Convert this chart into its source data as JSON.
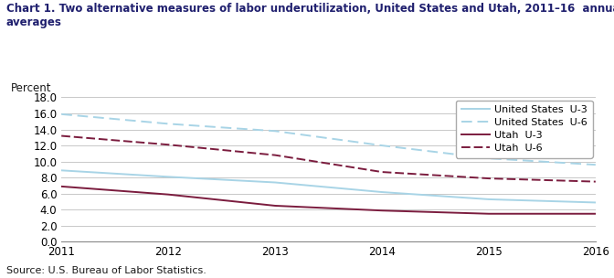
{
  "title": "Chart 1. Two alternative measures of labor underutilization, United States and Utah, 2011–16  annual\naverages",
  "ylabel": "Percent",
  "source": "Source: U.S. Bureau of Labor Statistics.",
  "years": [
    2011,
    2012,
    2013,
    2014,
    2015,
    2016
  ],
  "us_u3": [
    8.9,
    8.1,
    7.4,
    6.2,
    5.3,
    4.9
  ],
  "us_u6": [
    15.9,
    14.7,
    13.8,
    12.0,
    10.4,
    9.6
  ],
  "utah_u3": [
    6.9,
    5.9,
    4.5,
    3.9,
    3.5,
    3.5
  ],
  "utah_u6": [
    13.2,
    12.1,
    10.8,
    8.7,
    7.9,
    7.5
  ],
  "color_us": "#a8d4e6",
  "color_utah": "#7b1c3e",
  "ylim": [
    0.0,
    18.0
  ],
  "yticks": [
    0.0,
    2.0,
    4.0,
    6.0,
    8.0,
    10.0,
    12.0,
    14.0,
    16.0,
    18.0
  ],
  "legend_labels": [
    "United States  U-3",
    "United States  U-6",
    "Utah  U-3",
    "Utah  U-6"
  ],
  "background_color": "#ffffff",
  "grid_color": "#c8c8c8",
  "title_color": "#1f1f6e",
  "text_color": "#1a1a1a"
}
